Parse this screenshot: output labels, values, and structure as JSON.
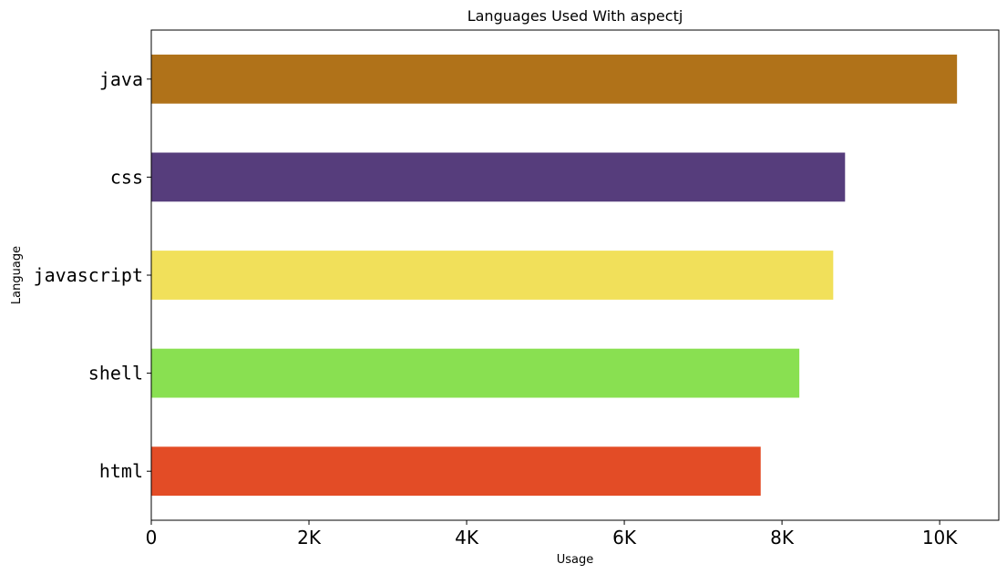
{
  "chart_data": {
    "type": "bar",
    "orientation": "horizontal",
    "title": "Languages Used With aspectj",
    "xlabel": "Usage",
    "ylabel": "Language",
    "categories": [
      "java",
      "css",
      "javascript",
      "shell",
      "html"
    ],
    "values": [
      10220,
      8800,
      8650,
      8220,
      7730
    ],
    "colors": [
      "#b07219",
      "#563d7c",
      "#f1e05a",
      "#89e051",
      "#e34c26"
    ],
    "xlim": [
      0,
      10750
    ],
    "xticks": [
      0,
      2000,
      4000,
      6000,
      8000,
      10000
    ],
    "xtick_labels": [
      "0",
      "2K",
      "4K",
      "6K",
      "8K",
      "10K"
    ],
    "grid": false,
    "legend": false
  }
}
